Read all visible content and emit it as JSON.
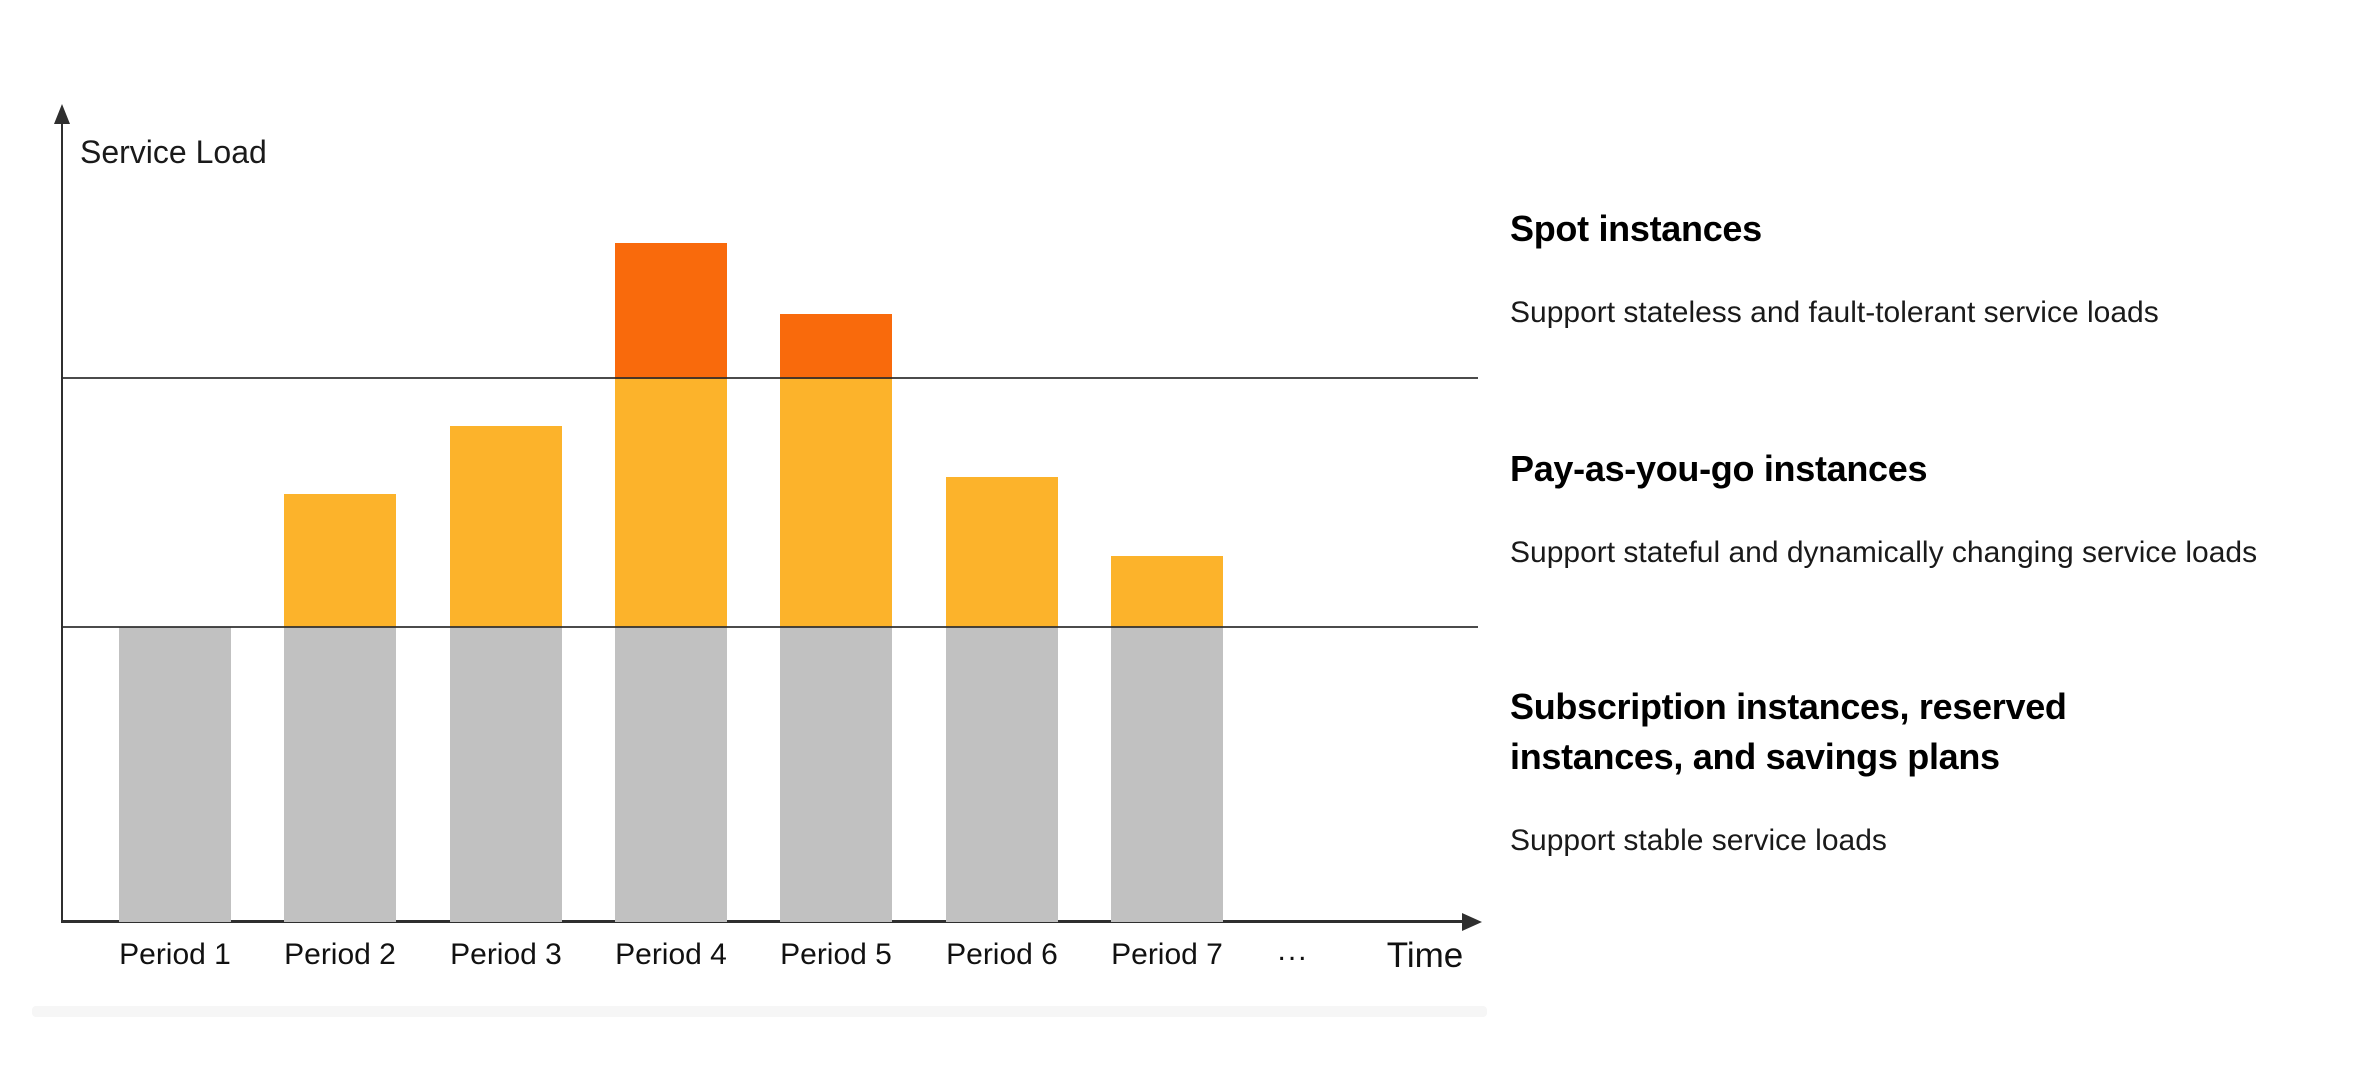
{
  "page": {
    "background": "#ffffff"
  },
  "chart_data": {
    "type": "bar",
    "stacked": true,
    "title": "",
    "ylabel": "Service Load",
    "xlabel": "Time",
    "ellipsis_label": "...",
    "categories": [
      "Period 1",
      "Period 2",
      "Period 3",
      "Period 4",
      "Period 5",
      "Period 6",
      "Period 7"
    ],
    "series": [
      {
        "name": "Subscription instances, reserved instances, and savings plans",
        "color": "#C1C1C1",
        "values": [
          1.0,
          1.0,
          1.0,
          1.0,
          1.0,
          1.0,
          1.0
        ]
      },
      {
        "name": "Pay-as-you-go instances",
        "color": "#FCB32B",
        "values": [
          0,
          0.45,
          0.68,
          0.84,
          0.84,
          0.51,
          0.24
        ]
      },
      {
        "name": "Spot instances",
        "color": "#F96A0C",
        "values": [
          0,
          0,
          0,
          0.46,
          0.22,
          0,
          0
        ]
      }
    ],
    "reference_lines": [
      {
        "label": "subscription-capacity-line",
        "value": 1.0
      },
      {
        "label": "pay-as-you-go-capacity-line",
        "value": 1.845
      }
    ],
    "ylim": [
      0,
      2.76
    ],
    "grid": false,
    "axis_color": "#2F2F2F",
    "legend_position": "right-annotations"
  },
  "annotations": [
    {
      "title": "Spot instances",
      "description": "Support stateless and fault-tolerant service loads"
    },
    {
      "title": "Pay-as-you-go instances",
      "description": "Support stateful and dynamically changing service loads"
    },
    {
      "title": "Subscription instances, reserved instances, and savings plans",
      "description": "Support stable service loads"
    }
  ]
}
